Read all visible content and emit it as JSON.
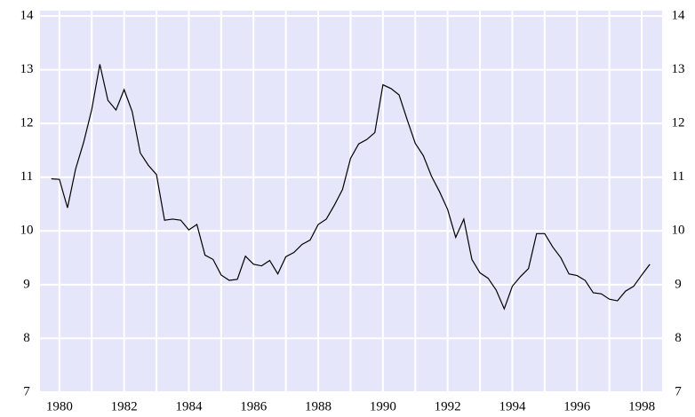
{
  "chart_data": {
    "type": "line",
    "x": [
      1979.75,
      1980,
      1980.25,
      1980.5,
      1980.75,
      1981,
      1981.25,
      1981.5,
      1981.75,
      1982,
      1982.25,
      1982.5,
      1982.75,
      1983,
      1983.25,
      1983.5,
      1983.75,
      1984,
      1984.25,
      1984.5,
      1984.75,
      1985,
      1985.25,
      1985.5,
      1985.75,
      1986,
      1986.25,
      1986.5,
      1986.75,
      1987,
      1987.25,
      1987.5,
      1987.75,
      1988,
      1988.25,
      1988.5,
      1988.75,
      1989,
      1989.25,
      1989.5,
      1989.75,
      1990,
      1990.25,
      1990.5,
      1990.75,
      1991,
      1991.25,
      1991.5,
      1991.75,
      1992,
      1992.25,
      1992.5,
      1992.75,
      1993,
      1993.25,
      1993.5,
      1993.75,
      1994,
      1994.25,
      1994.5,
      1994.75,
      1995,
      1995.25,
      1995.5,
      1995.75,
      1996,
      1996.25,
      1996.5,
      1996.75,
      1997,
      1997.25,
      1997.5,
      1997.75,
      1998,
      1998.25
    ],
    "series": [
      {
        "color": "#000000",
        "values": [
          10.97,
          10.96,
          10.43,
          11.15,
          11.65,
          12.26,
          13.1,
          12.43,
          12.25,
          12.63,
          12.22,
          11.45,
          11.22,
          11.05,
          10.2,
          10.22,
          10.2,
          10.02,
          10.12,
          9.55,
          9.47,
          9.18,
          9.08,
          9.1,
          9.53,
          9.38,
          9.35,
          9.45,
          9.2,
          9.52,
          9.6,
          9.75,
          9.83,
          10.12,
          10.22,
          10.48,
          10.77,
          11.35,
          11.62,
          11.7,
          11.83,
          12.72,
          12.65,
          12.53,
          12.07,
          11.63,
          11.4,
          11.02,
          10.73,
          10.4,
          9.88,
          10.22,
          9.47,
          9.22,
          9.12,
          8.9,
          8.55,
          8.97,
          9.15,
          9.3,
          9.95,
          9.95,
          9.7,
          9.5,
          9.2,
          9.17,
          9.08,
          8.85,
          8.83,
          8.73,
          8.7,
          8.88,
          8.97,
          9.18,
          9.38
        ]
      }
    ],
    "xlim": [
      1979.4,
      1998.63
    ],
    "xticks": [
      1980,
      1982,
      1984,
      1986,
      1988,
      1990,
      1992,
      1994,
      1996,
      1998
    ],
    "ylim": [
      7,
      14
    ],
    "yticks": [
      7,
      8,
      9,
      10,
      11,
      12,
      13,
      14
    ],
    "grid": true,
    "background": "#e6e6fa"
  }
}
